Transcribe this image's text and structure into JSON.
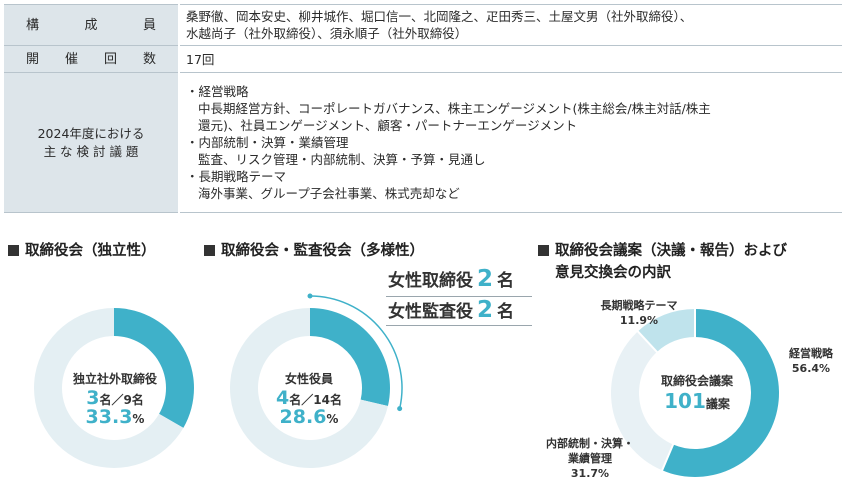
{
  "table": {
    "members_label": [
      "構",
      "成",
      "員"
    ],
    "members_lines": [
      "桑野徹、岡本安史、柳井城作、堀口信一、北岡隆之、疋田秀三、土屋文男（社外取締役）、",
      "水越尚子（社外取締役）、須永順子（社外取締役）"
    ],
    "meetings_label": [
      "開",
      "催",
      "回",
      "数"
    ],
    "meetings_value": "17回",
    "topics_label_line1": "2024年度における",
    "topics_label_line2": "主 な 検 討 議 題",
    "topics": [
      {
        "heading": "・経営戦略",
        "detail_lines": [
          "中長期経営方針、コーポレートガバナンス、株主エンゲージメント(株主総会/株主対話/株主",
          "還元)、社員エンゲージメント、顧客・パートナーエンゲージメント"
        ]
      },
      {
        "heading": "・内部統制・決算・業績管理",
        "detail_lines": [
          "監査、リスク管理・内部統制、決算・予算・見通し"
        ]
      },
      {
        "heading": "・長期戦略テーマ",
        "detail_lines": [
          "海外事業、グループ子会社事業、株式売却など"
        ]
      }
    ]
  },
  "independence": {
    "title": "取締役会（独立性）",
    "center_title": "独立社外取締役",
    "count": "3",
    "count_suffix": "名／9名",
    "percent": "33.3",
    "percent_suffix": "%"
  },
  "diversity": {
    "title": "取締役会・監査役会（多様性）",
    "center_title": "女性役員",
    "count": "4",
    "count_suffix": "名／14名",
    "percent": "28.6",
    "percent_suffix": "%",
    "callout_1_label": "女性取締役",
    "callout_1_value": "2",
    "callout_1_unit": "名",
    "callout_2_label": "女性監査役",
    "callout_2_value": "2",
    "callout_2_unit": "名"
  },
  "agenda": {
    "title_line1": "取締役会議案（決議・報告）および",
    "title_line2": "意見交換会の内訳",
    "center_title": "取締役会議案",
    "center_value": "101",
    "center_unit": "議案",
    "seg_longterm_name": "長期戦略テーマ",
    "seg_longterm_pct": "11.9%",
    "seg_strategy_name": "経営戦略",
    "seg_strategy_pct": "56.4%",
    "seg_internal_name_1": "内部統制・決算・",
    "seg_internal_name_2": "業績管理",
    "seg_internal_pct": "31.7%"
  },
  "chart_data": [
    {
      "type": "pie",
      "title": "取締役会（独立性）",
      "categories": [
        "独立社外取締役",
        ""
      ],
      "values": [
        33.3,
        66.7
      ]
    },
    {
      "type": "pie",
      "title": "取締役会・監査役会（多様性）",
      "categories": [
        "女性役員",
        ""
      ],
      "values": [
        28.6,
        71.4
      ]
    },
    {
      "type": "pie",
      "title": "取締役会議案（決議・報告）および意見交換会の内訳",
      "categories": [
        "経営戦略",
        "内部統制・決算・業績管理",
        "長期戦略テーマ"
      ],
      "values": [
        56.4,
        31.7,
        11.9
      ]
    }
  ],
  "colors": {
    "accent": "#3fb1c9",
    "track": "#e4eff3",
    "mid": "#e8f1f5",
    "light_accent": "#bfe3ec"
  }
}
